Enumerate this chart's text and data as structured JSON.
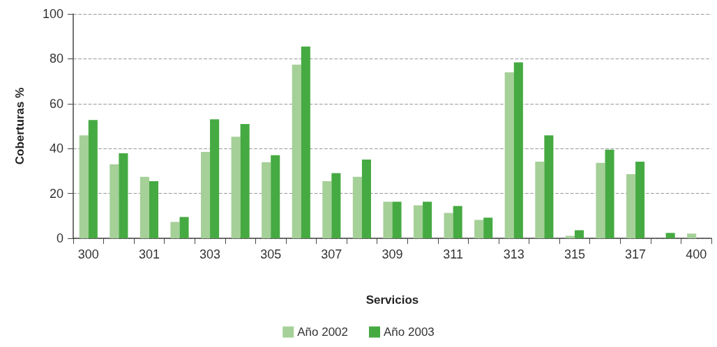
{
  "chart_data": {
    "type": "bar",
    "xlabel": "Servicios",
    "ylabel": "Coberturas %",
    "categories": [
      "300",
      null,
      "301",
      null,
      "303",
      null,
      "305",
      null,
      "307",
      null,
      "309",
      null,
      "311",
      null,
      "313",
      null,
      "315",
      null,
      "317",
      null,
      "400"
    ],
    "series": [
      {
        "name": "Año 2002",
        "color": "#a5d098",
        "values": [
          45.9,
          33.0,
          27.4,
          7.3,
          38.5,
          45.3,
          33.9,
          77.4,
          25.5,
          27.4,
          16.3,
          14.7,
          11.3,
          8.2,
          74.0,
          34.2,
          1.1,
          33.6,
          28.6,
          null,
          2.1
        ]
      },
      {
        "name": "Año 2003",
        "color": "#46aa42",
        "values": [
          52.7,
          37.9,
          25.5,
          9.5,
          53.0,
          50.9,
          37.0,
          85.5,
          29.0,
          35.1,
          16.3,
          16.3,
          14.4,
          9.2,
          78.4,
          45.9,
          3.6,
          39.5,
          34.2,
          2.4,
          null
        ]
      }
    ],
    "ylim": [
      0,
      100
    ],
    "yticks": [
      0,
      20,
      40,
      60,
      80,
      100
    ],
    "grid": "y",
    "legend": "bottom"
  }
}
